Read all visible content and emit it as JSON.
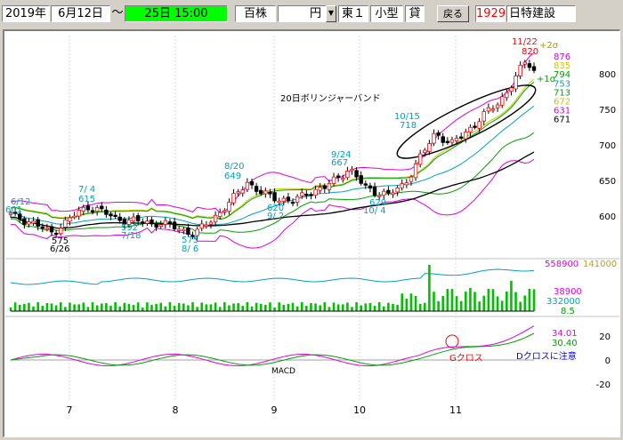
{
  "toolbar": {
    "year": "2019年",
    "date": "6月12日",
    "tilde": "～",
    "end_date": "25日 15:00",
    "unit_lot": "百株",
    "currency": "円",
    "market": "東１",
    "size_class": "小型",
    "lending": "貸",
    "back_label": "戻る",
    "code": "1929",
    "name": "日特建設"
  },
  "colors": {
    "date_box_bg": "#00ff00",
    "accent_red": "#ff0000",
    "title_bar": "#ffffff"
  },
  "main_panel": {
    "price_ticks": [
      "800",
      "750",
      "700",
      "650",
      "600"
    ],
    "chart_title": "20日ボリンジャーバンド",
    "legend": [
      {
        "value": "876",
        "color": "#e000e0"
      },
      {
        "value": "835",
        "color": "#c8c800"
      },
      {
        "value": "794",
        "color": "#00a000"
      },
      {
        "value": "753",
        "color": "#00a0c0"
      },
      {
        "value": "713",
        "color": "#00a000"
      },
      {
        "value": "672",
        "color": "#c8c800"
      },
      {
        "value": "631",
        "color": "#e000e0"
      },
      {
        "value": "671",
        "color": "#000000"
      }
    ],
    "band_label_plus2": "+2σ",
    "band_label_plus1": "+1σ",
    "annotations": [
      {
        "text": "6/12",
        "color": "#00a0c0"
      },
      {
        "text": "601",
        "color": "#00a0c0"
      },
      {
        "text": "7/ 4",
        "color": "#00a0c0"
      },
      {
        "text": "615",
        "color": "#00a0c0"
      },
      {
        "text": "575",
        "color": "#000000"
      },
      {
        "text": "6/26",
        "color": "#000000"
      },
      {
        "text": "592",
        "color": "#00a0c0"
      },
      {
        "text": "7/18",
        "color": "#00a0c0"
      },
      {
        "text": "8/20",
        "color": "#00a0c0"
      },
      {
        "text": "649",
        "color": "#00a0c0"
      },
      {
        "text": "575",
        "color": "#00a0c0"
      },
      {
        "text": "8/ 6",
        "color": "#00a0c0"
      },
      {
        "text": "620",
        "color": "#00a0c0"
      },
      {
        "text": "9/ 2",
        "color": "#00a0c0"
      },
      {
        "text": "9/24",
        "color": "#00a0c0"
      },
      {
        "text": "667",
        "color": "#00a0c0"
      },
      {
        "text": "629",
        "color": "#00a0c0"
      },
      {
        "text": "10/ 4",
        "color": "#00a0c0"
      },
      {
        "text": "10/15",
        "color": "#00a0c0"
      },
      {
        "text": "718",
        "color": "#00a0c0"
      },
      {
        "text": "11/22",
        "color": "#ff0000"
      },
      {
        "text": "820",
        "color": "#ff0000"
      }
    ]
  },
  "volume_panel": {
    "left_val": "558900",
    "right_val": "141000",
    "val_a": "38900",
    "val_b": "332000",
    "val_c": "8.5"
  },
  "macd_panel": {
    "label": "MACD",
    "val1": "34.01",
    "val2": "30.40",
    "ticks": [
      "20",
      "0",
      "-20"
    ],
    "gcross": "Gクロス",
    "dcross_note": "Dクロスに注意"
  },
  "x_axis": {
    "months": [
      "7",
      "8",
      "9",
      "10",
      "11"
    ]
  },
  "chart_data": [
    {
      "type": "line",
      "title": "20日ボリンジャーバンド",
      "ylim": [
        580,
        830
      ],
      "x": [
        "6/12",
        "6/26",
        "7/4",
        "7/18",
        "8/6",
        "8/20",
        "9/2",
        "9/24",
        "10/4",
        "10/15",
        "11/22",
        "11/25"
      ],
      "series": [
        {
          "name": "",
          "values": [
            601,
            575,
            615,
            592,
            575,
            649,
            620,
            667,
            629,
            718,
            820,
            810
          ]
        }
      ]
    },
    {
      "type": "bar",
      "title": "",
      "x": [
        "6/12",
        "7/4",
        "8/20",
        "9/24",
        "10/15",
        "11/22"
      ],
      "values": [
        40000,
        60000,
        90000,
        80000,
        558900,
        332000
      ]
    },
    {
      "type": "line",
      "title": "MACD",
      "ylim": [
        -25,
        30
      ],
      "series": [
        {
          "name": "",
          "values": [
            0,
            -2,
            3,
            -1,
            -6,
            5,
            2,
            6,
            1,
            12,
            34.01
          ]
        },
        {
          "name": "",
          "values": [
            0,
            -1,
            2,
            0,
            -4,
            3,
            3,
            5,
            2,
            8,
            30.4
          ]
        }
      ]
    }
  ]
}
